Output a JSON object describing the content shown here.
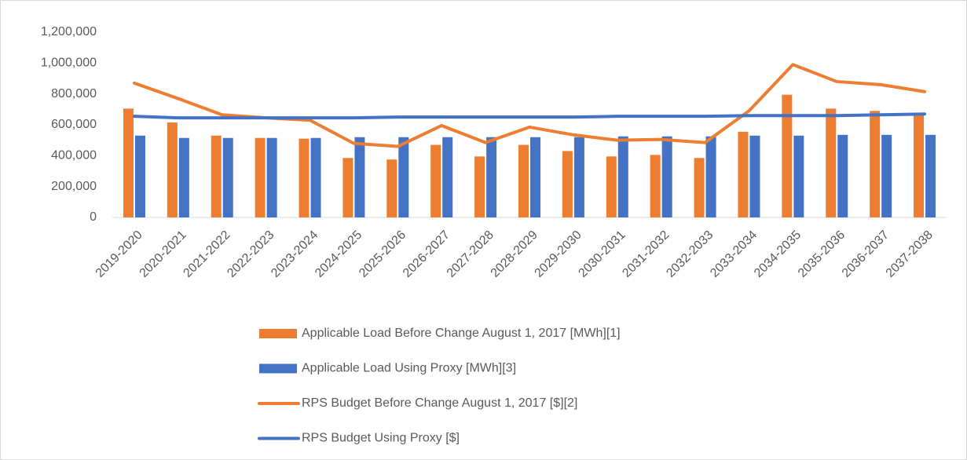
{
  "chart_data": {
    "type": "combo",
    "categories": [
      "2019-2020",
      "2020-2021",
      "2021-2022",
      "2022-2023",
      "2023-2024",
      "2024-2025",
      "2025-2026",
      "2026-2027",
      "2027-2028",
      "2028-2029",
      "2029-2030",
      "2030-2031",
      "2031-2032",
      "2032-2033",
      "2033-2034",
      "2034-2035",
      "2035-2036",
      "2036-2037",
      "2037-2038"
    ],
    "series": [
      {
        "name": "Applicable Load Before Change August 1, 2017 [MWh][1]",
        "type": "bar",
        "color": "#ed7d31",
        "values": [
          705000,
          615000,
          530000,
          515000,
          510000,
          385000,
          375000,
          470000,
          395000,
          470000,
          430000,
          395000,
          405000,
          385000,
          555000,
          795000,
          705000,
          690000,
          660000
        ]
      },
      {
        "name": "Applicable Load Using Proxy [MWh][3]",
        "type": "bar",
        "color": "#4472c4",
        "values": [
          530000,
          515000,
          515000,
          515000,
          515000,
          520000,
          520000,
          520000,
          520000,
          520000,
          520000,
          525000,
          525000,
          525000,
          530000,
          530000,
          535000,
          535000,
          535000
        ]
      },
      {
        "name": "RPS Budget Before Change August 1, 2017 [$][2]",
        "type": "line",
        "color": "#ed7d31",
        "values": [
          870000,
          770000,
          665000,
          645000,
          630000,
          480000,
          460000,
          595000,
          485000,
          585000,
          535000,
          500000,
          505000,
          485000,
          690000,
          990000,
          880000,
          860000,
          815000
        ]
      },
      {
        "name": "RPS Budget Using Proxy [$]",
        "type": "line",
        "color": "#4472c4",
        "values": [
          655000,
          645000,
          645000,
          645000,
          645000,
          645000,
          650000,
          650000,
          650000,
          650000,
          650000,
          655000,
          655000,
          655000,
          660000,
          660000,
          660000,
          665000,
          670000
        ]
      }
    ],
    "ylim": [
      0,
      1200000
    ],
    "yticks": [
      0,
      {
        "value": 200000,
        "label": "200,000"
      },
      {
        "value": 400000,
        "label": "400,000"
      },
      {
        "value": 600000,
        "label": "600,000"
      },
      {
        "value": 800000,
        "label": "800,000"
      },
      {
        "value": 1000000,
        "label": "1,000,000"
      },
      {
        "value": 1200000,
        "label": "1,200,000"
      }
    ],
    "grid": false,
    "legend": "bottom"
  }
}
